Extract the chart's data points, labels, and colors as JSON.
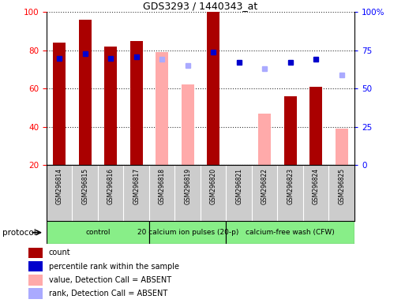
{
  "title": "GDS3293 / 1440343_at",
  "samples": [
    "GSM296814",
    "GSM296815",
    "GSM296816",
    "GSM296817",
    "GSM296818",
    "GSM296819",
    "GSM296820",
    "GSM296821",
    "GSM296822",
    "GSM296823",
    "GSM296824",
    "GSM296825"
  ],
  "bar_values": [
    84,
    96,
    82,
    85,
    null,
    null,
    100,
    null,
    null,
    56,
    61,
    null
  ],
  "absent_values": [
    null,
    null,
    null,
    null,
    79,
    62,
    null,
    null,
    47,
    null,
    null,
    39
  ],
  "percentile_rank": [
    70,
    73,
    70,
    71,
    null,
    null,
    74,
    67,
    null,
    67,
    69,
    null
  ],
  "rank_absent": [
    null,
    null,
    null,
    null,
    69,
    65,
    null,
    null,
    63,
    null,
    null,
    59
  ],
  "proto_boundaries": [
    0,
    4,
    7,
    12
  ],
  "proto_labels": [
    "control",
    "20 calcium ion pulses (20-p)",
    "calcium-free wash (CFW)"
  ],
  "proto_color": "#88ee88",
  "ylim_left": [
    20,
    100
  ],
  "ylim_right": [
    0,
    100
  ],
  "left_ticks": [
    20,
    40,
    60,
    80,
    100
  ],
  "right_ticks": [
    0,
    25,
    50,
    75,
    100
  ],
  "right_tick_labels": [
    "0",
    "25",
    "50",
    "75",
    "100%"
  ],
  "bar_color": "#aa0000",
  "absent_bar_color": "#ffaaaa",
  "rank_color": "#0000cc",
  "rank_absent_color": "#aaaaff",
  "xtick_bg": "#cccccc",
  "legend_items": [
    {
      "label": "count",
      "color": "#aa0000"
    },
    {
      "label": "percentile rank within the sample",
      "color": "#0000cc"
    },
    {
      "label": "value, Detection Call = ABSENT",
      "color": "#ffaaaa"
    },
    {
      "label": "rank, Detection Call = ABSENT",
      "color": "#aaaaff"
    }
  ]
}
